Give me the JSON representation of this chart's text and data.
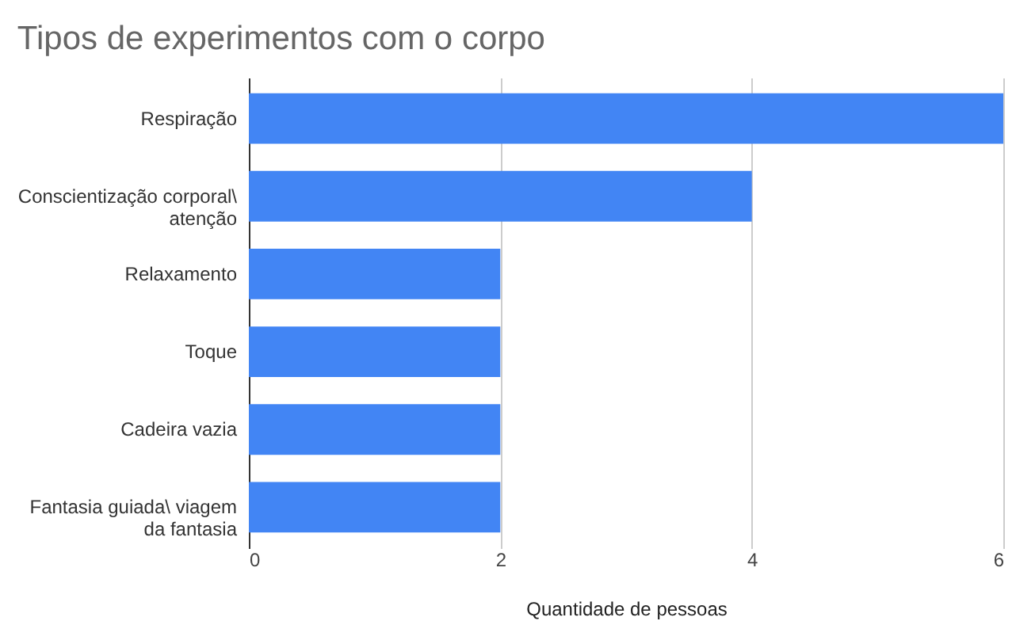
{
  "chart_data": {
    "type": "bar",
    "orientation": "horizontal",
    "title": "Tipos de experimentos com o corpo",
    "xlabel": "Quantidade de pessoas",
    "categories": [
      "Respiração",
      "Conscientização corporal\\ atenção",
      "Relaxamento",
      "Toque",
      "Cadeira vazia",
      "Fantasia guiada\\ viagem da fantasia"
    ],
    "values": [
      6,
      4,
      2,
      2,
      2,
      2
    ],
    "color": "#4285f4",
    "xlim": [
      0,
      6
    ],
    "xticks": [
      0,
      2,
      4,
      6
    ],
    "grid": "x"
  }
}
